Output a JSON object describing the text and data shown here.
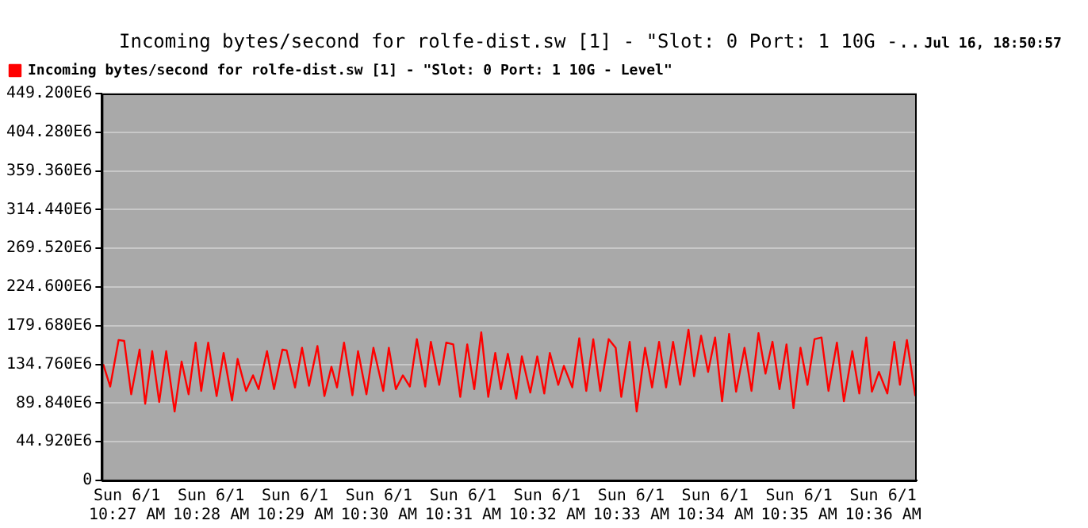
{
  "chart_data": {
    "type": "line",
    "title": "Incoming bytes/second for rolfe-dist.sw [1] - \"Slot: 0 Port: 1 10G -..",
    "annotations": [
      "Jul 16, 18:50:57"
    ],
    "legend": "top left",
    "grid": "y",
    "marker": "none",
    "line_style": "solid",
    "xlim": [
      "--06-01T10:26:42",
      "--06-01T10:36:24"
    ],
    "xticks": [
      {
        "value": "--06-01T10:27",
        "label": "Sun 6/1\n10:27 AM"
      },
      {
        "value": "--06-01T10:28",
        "label": "Sun 6/1\n10:28 AM"
      },
      {
        "value": "--06-01T10:29",
        "label": "Sun 6/1\n10:29 AM"
      },
      {
        "value": "--06-01T10:30",
        "label": "Sun 6/1\n10:30 AM"
      },
      {
        "value": "--06-01T10:31",
        "label": "Sun 6/1\n10:31 AM"
      },
      {
        "value": "--06-01T10:32",
        "label": "Sun 6/1\n10:32 AM"
      },
      {
        "value": "--06-01T10:33",
        "label": "Sun 6/1\n10:33 AM"
      },
      {
        "value": "--06-01T10:34",
        "label": "Sun 6/1\n10:34 AM"
      },
      {
        "value": "--06-01T10:35",
        "label": "Sun 6/1\n10:35 AM"
      },
      {
        "value": "--06-01T10:36",
        "label": "Sun 6/1\n10:36 AM"
      }
    ],
    "ylim": [
      0,
      449200000
    ],
    "yticks": [
      0,
      {
        "value": 44920000,
        "label": "44.920E6"
      },
      {
        "value": 89840000,
        "label": "89.840E6"
      },
      {
        "value": 134760000,
        "label": "134.760E6"
      },
      {
        "value": 179680000,
        "label": "179.680E6"
      },
      {
        "value": 224600000,
        "label": "224.600E6"
      },
      {
        "value": 269520000,
        "label": "269.520E6"
      },
      {
        "value": 314440000,
        "label": "314.440E6"
      },
      {
        "value": 359360000,
        "label": "359.360E6"
      },
      {
        "value": 404280000,
        "label": "404.280E6"
      },
      {
        "value": 449200000,
        "label": "449.200E6"
      }
    ],
    "series": [
      {
        "name": "Incoming bytes/second for rolfe-dist.sw [1] - \"Slot: 0 Port: 1 10G - Level\"",
        "color": "#ff0000",
        "x": [
          "--06-01T10:26:43",
          "--06-01T10:26:48",
          "--06-01T10:26:54",
          "--06-01T10:26:58",
          "--06-01T10:27:03",
          "--06-01T10:27:09",
          "--06-01T10:27:13",
          "--06-01T10:27:18",
          "--06-01T10:27:23",
          "--06-01T10:27:28",
          "--06-01T10:27:34",
          "--06-01T10:27:39",
          "--06-01T10:27:44",
          "--06-01T10:27:49",
          "--06-01T10:27:53",
          "--06-01T10:27:58",
          "--06-01T10:28:04",
          "--06-01T10:28:09",
          "--06-01T10:28:15",
          "--06-01T10:28:19",
          "--06-01T10:28:25",
          "--06-01T10:28:30",
          "--06-01T10:28:34",
          "--06-01T10:28:40",
          "--06-01T10:28:45",
          "--06-01T10:28:51",
          "--06-01T10:28:54",
          "--06-01T10:29:00",
          "--06-01T10:29:05",
          "--06-01T10:29:10",
          "--06-01T10:29:16",
          "--06-01T10:29:21",
          "--06-01T10:29:26",
          "--06-01T10:29:30",
          "--06-01T10:29:35",
          "--06-01T10:29:41",
          "--06-01T10:29:45",
          "--06-01T10:29:51",
          "--06-01T10:29:56",
          "--06-01T10:30:03",
          "--06-01T10:30:07",
          "--06-01T10:30:12",
          "--06-01T10:30:17",
          "--06-01T10:30:22",
          "--06-01T10:30:27",
          "--06-01T10:30:33",
          "--06-01T10:30:37",
          "--06-01T10:30:43",
          "--06-01T10:30:48",
          "--06-01T10:30:53",
          "--06-01T10:30:58",
          "--06-01T10:31:03",
          "--06-01T10:31:08",
          "--06-01T10:31:13",
          "--06-01T10:31:18",
          "--06-01T10:31:23",
          "--06-01T10:31:27",
          "--06-01T10:31:32",
          "--06-01T10:31:38",
          "--06-01T10:31:42",
          "--06-01T10:31:48",
          "--06-01T10:31:53",
          "--06-01T10:31:58",
          "--06-01T10:32:02",
          "--06-01T10:32:08",
          "--06-01T10:32:12",
          "--06-01T10:32:18",
          "--06-01T10:32:23",
          "--06-01T10:32:28",
          "--06-01T10:32:33",
          "--06-01T10:32:38",
          "--06-01T10:32:44",
          "--06-01T10:32:49",
          "--06-01T10:32:53",
          "--06-01T10:32:59",
          "--06-01T10:33:04",
          "--06-01T10:33:10",
          "--06-01T10:33:15",
          "--06-01T10:33:20",
          "--06-01T10:33:25",
          "--06-01T10:33:30",
          "--06-01T10:33:35",
          "--06-01T10:33:41",
          "--06-01T10:33:45",
          "--06-01T10:33:50",
          "--06-01T10:33:55",
          "--06-01T10:34:00",
          "--06-01T10:34:05",
          "--06-01T10:34:10",
          "--06-01T10:34:15",
          "--06-01T10:34:21",
          "--06-01T10:34:26",
          "--06-01T10:34:31",
          "--06-01T10:34:36",
          "--06-01T10:34:41",
          "--06-01T10:34:46",
          "--06-01T10:34:51",
          "--06-01T10:34:56",
          "--06-01T10:35:01",
          "--06-01T10:35:06",
          "--06-01T10:35:11",
          "--06-01T10:35:16",
          "--06-01T10:35:21",
          "--06-01T10:35:27",
          "--06-01T10:35:32",
          "--06-01T10:35:38",
          "--06-01T10:35:43",
          "--06-01T10:35:48",
          "--06-01T10:35:52",
          "--06-01T10:35:57",
          "--06-01T10:36:03",
          "--06-01T10:36:08",
          "--06-01T10:36:12",
          "--06-01T10:36:17",
          "--06-01T10:36:23"
        ],
        "values": [
          135000000,
          109000000,
          163000000,
          162000000,
          100000000,
          152000000,
          89000000,
          150000000,
          91000000,
          150000000,
          80000000,
          138000000,
          100000000,
          160000000,
          104000000,
          160000000,
          98000000,
          148000000,
          93000000,
          141000000,
          104000000,
          122000000,
          106000000,
          150000000,
          106000000,
          152000000,
          151000000,
          108000000,
          154000000,
          110000000,
          156000000,
          98000000,
          132000000,
          108000000,
          160000000,
          99000000,
          150000000,
          100000000,
          154000000,
          104000000,
          154000000,
          106000000,
          122000000,
          109000000,
          164000000,
          109000000,
          161000000,
          111000000,
          160000000,
          158000000,
          97000000,
          158000000,
          106000000,
          172000000,
          97000000,
          148000000,
          106000000,
          147000000,
          95000000,
          144000000,
          102000000,
          144000000,
          101000000,
          148000000,
          111000000,
          133000000,
          108000000,
          165000000,
          104000000,
          164000000,
          104000000,
          164000000,
          154000000,
          97000000,
          161000000,
          80000000,
          154000000,
          108000000,
          161000000,
          108000000,
          161000000,
          111000000,
          175000000,
          121000000,
          168000000,
          126000000,
          166000000,
          92000000,
          170000000,
          103000000,
          154000000,
          104000000,
          171000000,
          124000000,
          161000000,
          106000000,
          158000000,
          84000000,
          154000000,
          111000000,
          164000000,
          166000000,
          104000000,
          160000000,
          92000000,
          150000000,
          101000000,
          166000000,
          103000000,
          126000000,
          101000000,
          161000000,
          111000000,
          163000000,
          98000000
        ]
      }
    ]
  }
}
